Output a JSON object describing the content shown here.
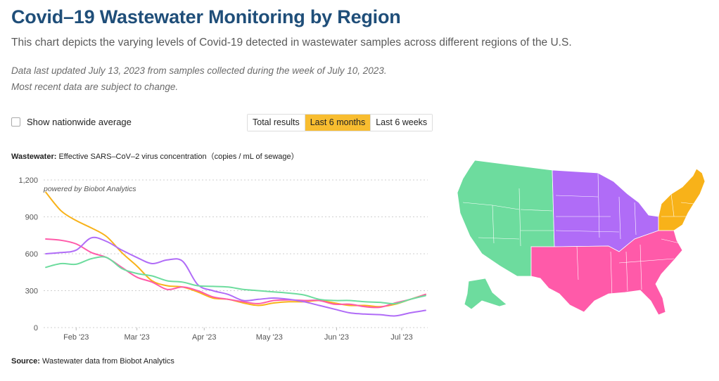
{
  "header": {
    "title": "Covid–19 Wastewater Monitoring by Region",
    "subtitle": "This chart depicts the varying levels of Covid-19 detected in wastewater samples across different regions of the U.S.",
    "note_line1": "Data last updated July 13, 2023 from samples collected during the week of July 10, 2023.",
    "note_line2": "Most recent data are subject to change."
  },
  "controls": {
    "nationwide_label": "Show nationwide average",
    "nationwide_checked": false,
    "tabs": [
      {
        "label": "Total results",
        "active": false
      },
      {
        "label": "Last 6 months",
        "active": true
      },
      {
        "label": "Last 6 weeks",
        "active": false
      }
    ]
  },
  "chart_heading": {
    "bold": "Wastewater:",
    "rest": " Effective SARS–CoV–2 virus concentration（copies / mL of sewage）"
  },
  "source": {
    "bold": "Source:",
    "rest": " Wastewater data from Biobot Analytics"
  },
  "colors": {
    "northeast": "#f8b219",
    "south": "#ff5aa9",
    "midwest": "#b06cf7",
    "west": "#6ddc9e",
    "grid": "#cfcfcf",
    "axis_text": "#555555"
  },
  "chart_data": {
    "type": "line",
    "annotation": "powered by Biobot Analytics",
    "ylim": [
      0,
      1200
    ],
    "yticks": [
      0,
      300,
      600,
      900,
      1200
    ],
    "ytick_labels": [
      "0",
      "300",
      "600",
      "900",
      "1,200"
    ],
    "xticks": [
      {
        "date": "2023-02-01",
        "label": "Feb '23"
      },
      {
        "date": "2023-03-01",
        "label": "Mar '23"
      },
      {
        "date": "2023-04-01",
        "label": "Apr '23"
      },
      {
        "date": "2023-05-01",
        "label": "May '23"
      },
      {
        "date": "2023-06-01",
        "label": "Jun '23"
      },
      {
        "date": "2023-07-01",
        "label": "Jul '23"
      }
    ],
    "xlim": [
      "2023-01-17",
      "2023-07-13"
    ],
    "grid": "horizontal dashed",
    "legend": "map",
    "series": [
      {
        "color_key": "northeast",
        "points": [
          [
            "2023-01-18",
            1100
          ],
          [
            "2023-01-25",
            950
          ],
          [
            "2023-02-01",
            870
          ],
          [
            "2023-02-08",
            810
          ],
          [
            "2023-02-15",
            740
          ],
          [
            "2023-02-22",
            610
          ],
          [
            "2023-03-01",
            500
          ],
          [
            "2023-03-08",
            380
          ],
          [
            "2023-03-15",
            340
          ],
          [
            "2023-03-22",
            330
          ],
          [
            "2023-03-29",
            290
          ],
          [
            "2023-04-05",
            240
          ],
          [
            "2023-04-12",
            230
          ],
          [
            "2023-04-19",
            200
          ],
          [
            "2023-04-26",
            180
          ],
          [
            "2023-05-03",
            200
          ],
          [
            "2023-05-10",
            210
          ],
          [
            "2023-05-17",
            210
          ],
          [
            "2023-05-24",
            220
          ],
          [
            "2023-05-31",
            200
          ],
          [
            "2023-06-07",
            180
          ],
          [
            "2023-06-14",
            180
          ],
          [
            "2023-06-21",
            170
          ],
          [
            "2023-06-28",
            190
          ],
          [
            "2023-07-05",
            230
          ],
          [
            "2023-07-12",
            270
          ]
        ]
      },
      {
        "color_key": "south",
        "points": [
          [
            "2023-01-18",
            720
          ],
          [
            "2023-01-25",
            710
          ],
          [
            "2023-02-01",
            680
          ],
          [
            "2023-02-08",
            610
          ],
          [
            "2023-02-15",
            570
          ],
          [
            "2023-02-22",
            490
          ],
          [
            "2023-03-01",
            410
          ],
          [
            "2023-03-08",
            370
          ],
          [
            "2023-03-15",
            310
          ],
          [
            "2023-03-22",
            330
          ],
          [
            "2023-03-29",
            300
          ],
          [
            "2023-04-05",
            250
          ],
          [
            "2023-04-12",
            230
          ],
          [
            "2023-04-19",
            210
          ],
          [
            "2023-04-26",
            195
          ],
          [
            "2023-05-03",
            220
          ],
          [
            "2023-05-10",
            225
          ],
          [
            "2023-05-17",
            220
          ],
          [
            "2023-05-24",
            220
          ],
          [
            "2023-05-31",
            190
          ],
          [
            "2023-06-07",
            190
          ],
          [
            "2023-06-14",
            170
          ],
          [
            "2023-06-21",
            165
          ],
          [
            "2023-06-28",
            200
          ],
          [
            "2023-07-05",
            230
          ],
          [
            "2023-07-12",
            270
          ]
        ]
      },
      {
        "color_key": "midwest",
        "points": [
          [
            "2023-01-18",
            600
          ],
          [
            "2023-01-25",
            610
          ],
          [
            "2023-02-01",
            630
          ],
          [
            "2023-02-08",
            730
          ],
          [
            "2023-02-15",
            700
          ],
          [
            "2023-02-22",
            630
          ],
          [
            "2023-03-01",
            570
          ],
          [
            "2023-03-08",
            520
          ],
          [
            "2023-03-15",
            550
          ],
          [
            "2023-03-22",
            540
          ],
          [
            "2023-03-29",
            350
          ],
          [
            "2023-04-05",
            300
          ],
          [
            "2023-04-12",
            270
          ],
          [
            "2023-04-19",
            220
          ],
          [
            "2023-04-26",
            230
          ],
          [
            "2023-05-03",
            240
          ],
          [
            "2023-05-10",
            230
          ],
          [
            "2023-05-17",
            210
          ],
          [
            "2023-05-24",
            180
          ],
          [
            "2023-05-31",
            150
          ],
          [
            "2023-06-07",
            120
          ],
          [
            "2023-06-14",
            110
          ],
          [
            "2023-06-21",
            105
          ],
          [
            "2023-06-28",
            95
          ],
          [
            "2023-07-05",
            120
          ],
          [
            "2023-07-12",
            140
          ]
        ]
      },
      {
        "color_key": "west",
        "points": [
          [
            "2023-01-18",
            490
          ],
          [
            "2023-01-25",
            520
          ],
          [
            "2023-02-01",
            515
          ],
          [
            "2023-02-08",
            560
          ],
          [
            "2023-02-15",
            570
          ],
          [
            "2023-02-22",
            480
          ],
          [
            "2023-03-01",
            440
          ],
          [
            "2023-03-08",
            420
          ],
          [
            "2023-03-15",
            380
          ],
          [
            "2023-03-22",
            370
          ],
          [
            "2023-03-29",
            340
          ],
          [
            "2023-04-05",
            335
          ],
          [
            "2023-04-12",
            330
          ],
          [
            "2023-04-19",
            310
          ],
          [
            "2023-04-26",
            300
          ],
          [
            "2023-05-03",
            290
          ],
          [
            "2023-05-10",
            280
          ],
          [
            "2023-05-17",
            265
          ],
          [
            "2023-05-24",
            230
          ],
          [
            "2023-05-31",
            220
          ],
          [
            "2023-06-07",
            220
          ],
          [
            "2023-06-14",
            210
          ],
          [
            "2023-06-21",
            205
          ],
          [
            "2023-06-28",
            195
          ],
          [
            "2023-07-05",
            230
          ],
          [
            "2023-07-12",
            260
          ]
        ]
      }
    ]
  }
}
